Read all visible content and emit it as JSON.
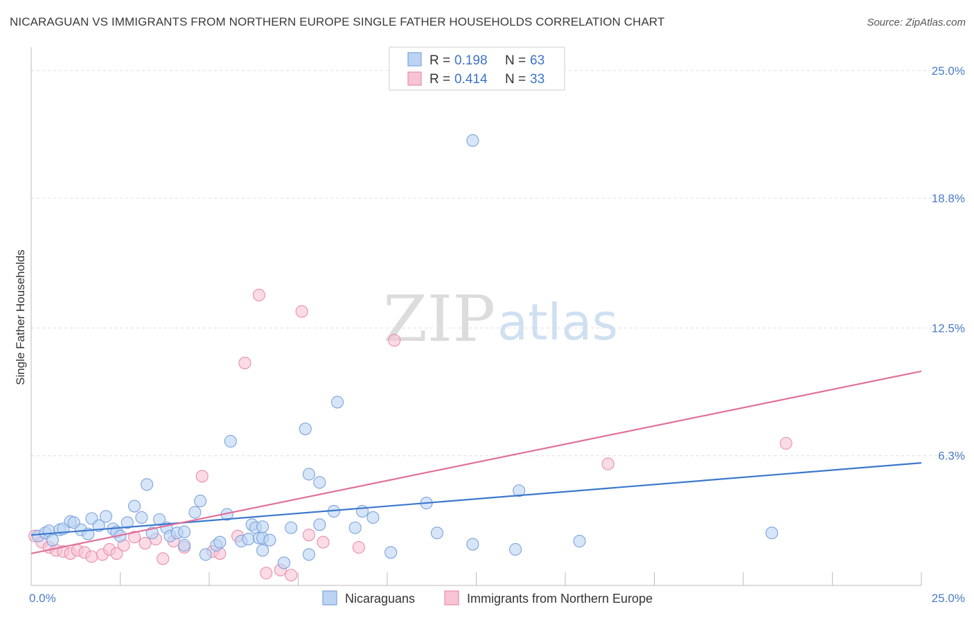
{
  "header": {
    "title": "NICARAGUAN VS IMMIGRANTS FROM NORTHERN EUROPE SINGLE FATHER HOUSEHOLDS CORRELATION CHART",
    "source": "Source: ZipAtlas.com"
  },
  "watermark": {
    "zip": "ZIP",
    "atlas": "atlas"
  },
  "colors": {
    "blue_fill": "#bcd4f3",
    "blue_stroke": "#7ba3dd",
    "blue_line": "#3b78cc",
    "pink_fill": "#f8c3d3",
    "pink_stroke": "#e88fab",
    "pink_line": "#e0709a",
    "tick_text": "#4a7cc9",
    "grid": "#dddddd"
  },
  "legend": {
    "rows": [
      {
        "r_label": "R =",
        "r_value": "0.198",
        "n_label": "N =",
        "n_value": "63"
      },
      {
        "r_label": "R =",
        "r_value": "0.414",
        "n_label": "N =",
        "n_value": "33"
      }
    ]
  },
  "bottom_legend": [
    "Nicaraguans",
    "Immigrants from Northern Europe"
  ],
  "chart_data": {
    "type": "scatter",
    "ylabel": "Single Father Households",
    "xlim": [
      0,
      25
    ],
    "ylim": [
      0,
      25.8
    ],
    "x_tick_labels": [
      {
        "value": 0,
        "label": "0.0%"
      },
      {
        "value": 25,
        "label": "25.0%"
      }
    ],
    "y_tick_labels": [
      {
        "value": 6.3,
        "label": "6.3%"
      },
      {
        "value": 12.5,
        "label": "12.5%"
      },
      {
        "value": 18.8,
        "label": "18.8%"
      },
      {
        "value": 25.0,
        "label": "25.0%"
      }
    ],
    "x_minor_ticks": [
      2.5,
      5,
      7.5,
      10,
      12.5,
      15,
      17.5,
      20,
      22.5,
      25
    ],
    "grid": true,
    "legend_placement": "top-center",
    "series": [
      {
        "name": "Nicaraguans",
        "color": "#7ba3dd",
        "trend": {
          "x": [
            0,
            25
          ],
          "y": [
            2.45,
            5.95
          ]
        },
        "points": [
          [
            0.2,
            2.4
          ],
          [
            0.4,
            2.55
          ],
          [
            0.5,
            2.65
          ],
          [
            0.6,
            2.2
          ],
          [
            0.8,
            2.7
          ],
          [
            0.9,
            2.75
          ],
          [
            1.1,
            3.1
          ],
          [
            1.2,
            3.05
          ],
          [
            1.4,
            2.7
          ],
          [
            1.6,
            2.5
          ],
          [
            1.7,
            3.25
          ],
          [
            1.9,
            2.9
          ],
          [
            2.1,
            3.35
          ],
          [
            2.3,
            2.75
          ],
          [
            2.4,
            2.6
          ],
          [
            2.5,
            2.4
          ],
          [
            2.7,
            3.05
          ],
          [
            2.9,
            3.85
          ],
          [
            3.1,
            3.3
          ],
          [
            3.25,
            4.9
          ],
          [
            3.4,
            2.55
          ],
          [
            3.6,
            3.2
          ],
          [
            3.8,
            2.8
          ],
          [
            3.9,
            2.4
          ],
          [
            4.1,
            2.55
          ],
          [
            4.3,
            2.6
          ],
          [
            4.3,
            1.95
          ],
          [
            4.6,
            3.55
          ],
          [
            4.75,
            4.1
          ],
          [
            4.9,
            1.5
          ],
          [
            5.2,
            1.95
          ],
          [
            5.3,
            2.1
          ],
          [
            5.5,
            3.45
          ],
          [
            5.6,
            7.0
          ],
          [
            5.9,
            2.15
          ],
          [
            6.1,
            2.25
          ],
          [
            6.2,
            2.95
          ],
          [
            6.3,
            2.8
          ],
          [
            6.5,
            2.85
          ],
          [
            6.4,
            2.3
          ],
          [
            6.5,
            2.3
          ],
          [
            6.5,
            1.7
          ],
          [
            6.7,
            2.2
          ],
          [
            7.1,
            1.1
          ],
          [
            7.3,
            2.8
          ],
          [
            7.7,
            7.6
          ],
          [
            7.8,
            5.4
          ],
          [
            7.8,
            1.5
          ],
          [
            8.1,
            2.95
          ],
          [
            8.1,
            5.0
          ],
          [
            8.5,
            3.6
          ],
          [
            8.6,
            8.9
          ],
          [
            9.1,
            2.8
          ],
          [
            9.3,
            3.6
          ],
          [
            9.6,
            3.3
          ],
          [
            10.1,
            1.6
          ],
          [
            11.1,
            4.0
          ],
          [
            11.4,
            2.55
          ],
          [
            12.4,
            2.0
          ],
          [
            12.4,
            21.6
          ],
          [
            13.6,
            1.75
          ],
          [
            13.7,
            4.6
          ],
          [
            15.4,
            2.15
          ],
          [
            20.8,
            2.55
          ]
        ]
      },
      {
        "name": "Immigrants from Northern Europe",
        "color": "#e88fab",
        "trend": {
          "x": [
            0,
            25
          ],
          "y": [
            1.55,
            10.4
          ]
        },
        "points": [
          [
            0.1,
            2.4
          ],
          [
            0.3,
            2.1
          ],
          [
            0.5,
            1.85
          ],
          [
            0.7,
            1.7
          ],
          [
            0.9,
            1.65
          ],
          [
            1.1,
            1.55
          ],
          [
            1.3,
            1.7
          ],
          [
            1.5,
            1.6
          ],
          [
            1.7,
            1.4
          ],
          [
            2.0,
            1.5
          ],
          [
            2.2,
            1.75
          ],
          [
            2.4,
            1.55
          ],
          [
            2.6,
            1.95
          ],
          [
            2.9,
            2.35
          ],
          [
            3.2,
            2.05
          ],
          [
            3.5,
            2.25
          ],
          [
            3.7,
            1.3
          ],
          [
            4.0,
            2.15
          ],
          [
            4.3,
            1.85
          ],
          [
            4.8,
            5.3
          ],
          [
            5.1,
            1.65
          ],
          [
            5.3,
            1.55
          ],
          [
            5.8,
            2.4
          ],
          [
            6.0,
            10.8
          ],
          [
            6.4,
            14.1
          ],
          [
            6.6,
            0.6
          ],
          [
            7.0,
            0.75
          ],
          [
            7.3,
            0.5
          ],
          [
            7.6,
            13.3
          ],
          [
            7.8,
            2.45
          ],
          [
            8.2,
            2.1
          ],
          [
            9.2,
            1.85
          ],
          [
            10.2,
            11.9
          ],
          [
            16.2,
            5.9
          ],
          [
            21.2,
            6.9
          ]
        ]
      }
    ]
  }
}
